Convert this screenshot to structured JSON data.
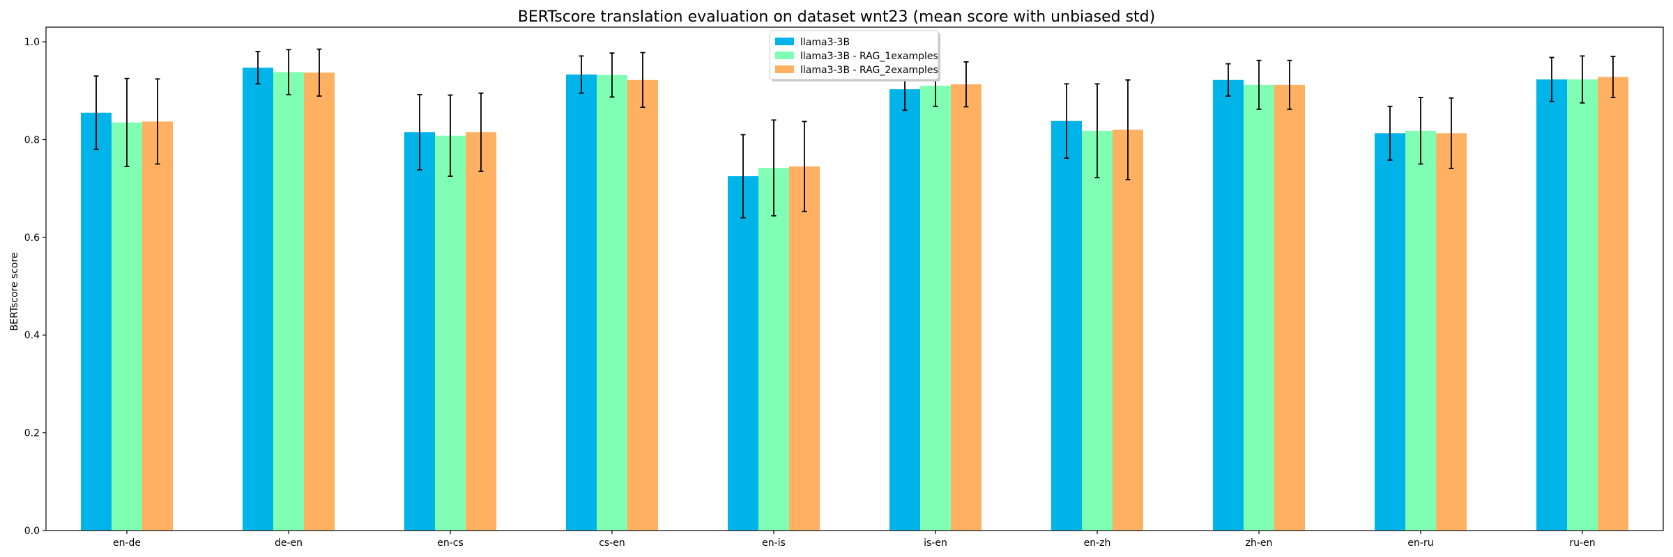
{
  "chart_data": {
    "type": "bar",
    "title": "BERTscore translation evaluation on dataset wnt23 (mean score with unbiased std)",
    "xlabel": "",
    "ylabel": "BERTscore score",
    "ylim": [
      0,
      1.03
    ],
    "yticks": [
      "0.0",
      "0.2",
      "0.4",
      "0.6",
      "0.8",
      "1.0"
    ],
    "grid": false,
    "legend_position": "top-center",
    "categories": [
      "en-de",
      "de-en",
      "en-cs",
      "cs-en",
      "en-is",
      "is-en",
      "en-zh",
      "zh-en",
      "en-ru",
      "ru-en"
    ],
    "series": [
      {
        "name": "llama3-3B",
        "color": "#00b4ea",
        "values": [
          0.855,
          0.947,
          0.815,
          0.933,
          0.725,
          0.903,
          0.838,
          0.922,
          0.813,
          0.923
        ],
        "errors": [
          0.075,
          0.033,
          0.077,
          0.038,
          0.085,
          0.043,
          0.076,
          0.033,
          0.055,
          0.045
        ]
      },
      {
        "name": "llama3-3B - RAG_1examples",
        "color": "#80ffb4",
        "values": [
          0.835,
          0.938,
          0.808,
          0.932,
          0.742,
          0.91,
          0.818,
          0.912,
          0.818,
          0.923
        ],
        "errors": [
          0.09,
          0.046,
          0.083,
          0.045,
          0.098,
          0.042,
          0.096,
          0.05,
          0.068,
          0.048
        ]
      },
      {
        "name": "llama3-3B - RAG_2examples",
        "color": "#ffb061",
        "values": [
          0.837,
          0.937,
          0.815,
          0.922,
          0.745,
          0.913,
          0.82,
          0.912,
          0.813,
          0.928
        ],
        "errors": [
          0.087,
          0.048,
          0.08,
          0.056,
          0.092,
          0.046,
          0.102,
          0.05,
          0.072,
          0.042
        ]
      }
    ]
  }
}
